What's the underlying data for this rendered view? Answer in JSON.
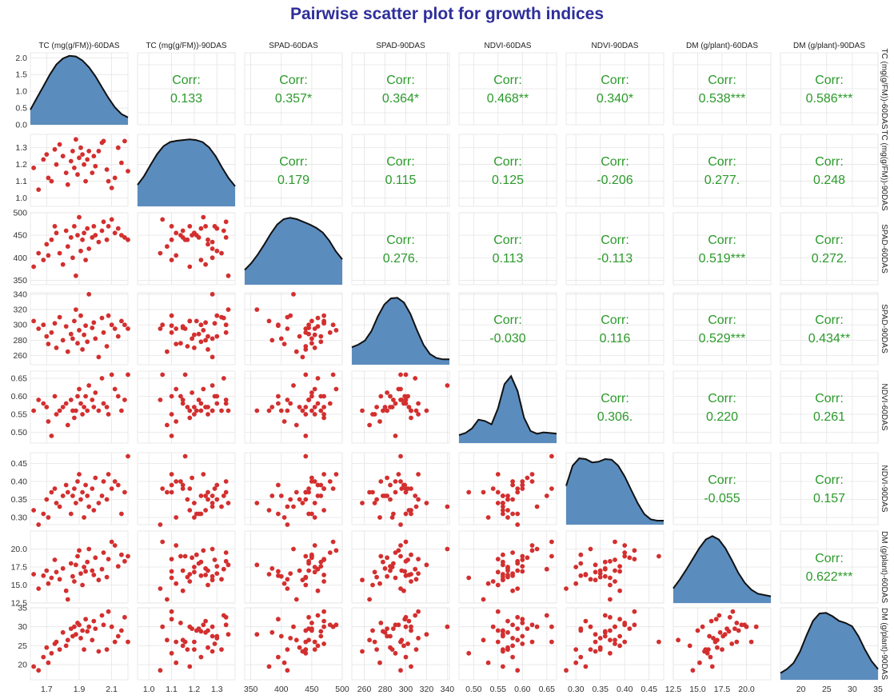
{
  "title": "Pairwise scatter plot for growth indices",
  "chart_data": {
    "type": "scatter",
    "subtype": "pairs-matrix",
    "variables": [
      {
        "name": "TC (mg(g/FM))-60DAS",
        "row_label": "TC (mg(g/FM))-60DAS",
        "range": [
          1.6,
          2.2
        ],
        "ticks": [
          1.7,
          1.9,
          2.1
        ]
      },
      {
        "name": "TC (mg(g/FM))-90DAS",
        "row_label": "TC (mg(g/FM))-90DAS",
        "range": [
          0.95,
          1.38
        ],
        "ticks": [
          1.0,
          1.1,
          1.2,
          1.3
        ],
        "y_ticks": [
          1.0,
          1.1,
          1.2,
          1.3
        ]
      },
      {
        "name": "SPAD-60DAS",
        "row_label": "SPAD-60DAS",
        "range": [
          340,
          500
        ],
        "ticks": [
          350,
          400,
          450,
          500
        ],
        "y_ticks": [
          350,
          400,
          450,
          500
        ]
      },
      {
        "name": "SPAD-90DAS",
        "row_label": "SPAD-90DAS",
        "range": [
          248,
          342
        ],
        "ticks": [
          260,
          280,
          300,
          320,
          340
        ],
        "y_ticks": [
          260,
          280,
          300,
          320,
          340
        ]
      },
      {
        "name": "NDVI-60DAS",
        "row_label": "NDVI-60DAS",
        "range": [
          0.47,
          0.67
        ],
        "ticks": [
          0.5,
          0.55,
          0.6,
          0.65
        ],
        "y_ticks": [
          0.5,
          0.55,
          0.6,
          0.65
        ]
      },
      {
        "name": "NDVI-90DAS",
        "row_label": "NDVI-90DAS",
        "range": [
          0.28,
          0.48
        ],
        "ticks": [
          0.3,
          0.35,
          0.4,
          0.45
        ],
        "y_ticks": [
          0.3,
          0.35,
          0.4,
          0.45
        ]
      },
      {
        "name": "DM (g/plant)-60DAS",
        "row_label": "DM (g/plant)-60DAS",
        "range": [
          12.5,
          22.5
        ],
        "ticks": [
          12.5,
          15.0,
          17.5,
          20.0
        ],
        "y_ticks": [
          12.5,
          15.0,
          17.5,
          20.0
        ]
      },
      {
        "name": "DM (g/plant)-90DAS",
        "row_label": "DM (g/plant)-90DAS",
        "range": [
          16,
          35
        ],
        "ticks": [
          20,
          25,
          30,
          35
        ],
        "y_ticks": [
          20,
          25,
          30,
          35
        ]
      }
    ],
    "first_row_density_ticks": [
      0.0,
      0.5,
      1.0,
      1.5,
      2.0
    ],
    "first_row_density_max": 2.15,
    "density_curves": [
      [
        0.45,
        0.8,
        1.15,
        1.5,
        1.8,
        1.98,
        2.06,
        2.04,
        1.92,
        1.72,
        1.45,
        1.12,
        0.8,
        0.52,
        0.32,
        0.22
      ],
      [
        0.32,
        0.45,
        0.62,
        0.78,
        0.9,
        0.96,
        0.98,
        0.99,
        1.0,
        0.99,
        0.96,
        0.88,
        0.75,
        0.58,
        0.42,
        0.3
      ],
      [
        0.22,
        0.32,
        0.45,
        0.6,
        0.76,
        0.9,
        0.98,
        1.0,
        0.98,
        0.94,
        0.9,
        0.85,
        0.78,
        0.66,
        0.5,
        0.38
      ],
      [
        0.26,
        0.3,
        0.36,
        0.5,
        0.72,
        0.9,
        0.99,
        1.0,
        0.93,
        0.76,
        0.52,
        0.3,
        0.16,
        0.1,
        0.08,
        0.08
      ],
      [
        0.12,
        0.15,
        0.22,
        0.35,
        0.33,
        0.28,
        0.52,
        0.88,
        1.0,
        0.78,
        0.38,
        0.18,
        0.14,
        0.16,
        0.15,
        0.14
      ],
      [
        0.58,
        0.88,
        0.99,
        0.98,
        0.93,
        0.94,
        0.98,
        0.97,
        0.88,
        0.72,
        0.52,
        0.32,
        0.16,
        0.08,
        0.06,
        0.06
      ],
      [
        0.22,
        0.35,
        0.5,
        0.66,
        0.82,
        0.95,
        1.0,
        0.95,
        0.82,
        0.64,
        0.45,
        0.3,
        0.2,
        0.14,
        0.12,
        0.1
      ],
      [
        0.1,
        0.16,
        0.25,
        0.42,
        0.66,
        0.88,
        0.99,
        1.0,
        0.95,
        0.88,
        0.85,
        0.8,
        0.65,
        0.45,
        0.28,
        0.16
      ]
    ],
    "observations": [
      [
        1.62,
        1.18,
        380,
        305,
        0.56,
        0.32,
        16.5,
        19.5
      ],
      [
        1.65,
        1.05,
        410,
        295,
        0.59,
        0.28,
        14.5,
        18.5
      ],
      [
        1.68,
        1.23,
        395,
        300,
        0.58,
        0.31,
        16.3,
        22.0
      ],
      [
        1.7,
        1.26,
        430,
        285,
        0.57,
        0.35,
        17.0,
        24.5
      ],
      [
        1.71,
        1.12,
        405,
        275,
        0.53,
        0.3,
        15.2,
        20.5
      ],
      [
        1.73,
        1.1,
        440,
        290,
        0.49,
        0.37,
        16.0,
        23.0
      ],
      [
        1.75,
        1.29,
        470,
        302,
        0.6,
        0.38,
        18.5,
        25.5
      ],
      [
        1.76,
        1.2,
        455,
        270,
        0.55,
        0.34,
        16.8,
        26.0
      ],
      [
        1.78,
        1.32,
        410,
        310,
        0.56,
        0.33,
        15.8,
        24.0
      ],
      [
        1.8,
        1.25,
        385,
        280,
        0.57,
        0.36,
        17.3,
        28.5
      ],
      [
        1.82,
        1.15,
        460,
        298,
        0.58,
        0.39,
        14.2,
        25.0
      ],
      [
        1.83,
        1.08,
        425,
        265,
        0.52,
        0.37,
        13.0,
        26.5
      ],
      [
        1.85,
        1.22,
        445,
        288,
        0.59,
        0.31,
        18.0,
        29.5
      ],
      [
        1.86,
        1.28,
        400,
        282,
        0.56,
        0.36,
        16.2,
        27.5
      ],
      [
        1.87,
        1.18,
        470,
        305,
        0.54,
        0.38,
        15.5,
        30.0
      ],
      [
        1.88,
        1.35,
        360,
        320,
        0.56,
        0.34,
        17.8,
        28.0
      ],
      [
        1.89,
        1.14,
        450,
        276,
        0.6,
        0.4,
        19.0,
        31.0
      ],
      [
        1.9,
        1.24,
        490,
        293,
        0.62,
        0.42,
        19.8,
        30.5
      ],
      [
        1.91,
        1.3,
        415,
        312,
        0.58,
        0.35,
        16.6,
        27.0
      ],
      [
        1.92,
        1.26,
        440,
        268,
        0.55,
        0.37,
        15.0,
        29.0
      ],
      [
        1.93,
        1.2,
        455,
        287,
        0.57,
        0.3,
        17.5,
        24.0
      ],
      [
        1.94,
        1.1,
        395,
        299,
        0.6,
        0.39,
        16.9,
        32.0
      ],
      [
        1.95,
        1.23,
        465,
        278,
        0.56,
        0.36,
        18.2,
        28.8
      ],
      [
        1.96,
        1.28,
        420,
        340,
        0.63,
        0.33,
        20.0,
        30.0
      ],
      [
        1.98,
        1.15,
        445,
        296,
        0.59,
        0.38,
        17.0,
        26.5
      ],
      [
        1.99,
        1.25,
        470,
        303,
        0.57,
        0.32,
        16.4,
        31.5
      ],
      [
        2.0,
        1.19,
        450,
        282,
        0.61,
        0.41,
        18.8,
        29.5
      ],
      [
        2.02,
        1.28,
        435,
        258,
        0.56,
        0.34,
        15.7,
        23.5
      ],
      [
        2.04,
        1.33,
        460,
        309,
        0.65,
        0.36,
        17.2,
        33.0
      ],
      [
        2.05,
        1.34,
        480,
        290,
        0.58,
        0.4,
        19.5,
        30.5
      ],
      [
        2.07,
        1.17,
        440,
        272,
        0.57,
        0.35,
        16.1,
        24.0
      ],
      [
        2.08,
        1.1,
        470,
        312,
        0.55,
        0.42,
        18.6,
        34.0
      ],
      [
        2.1,
        1.06,
        485,
        300,
        0.66,
        0.38,
        21.0,
        30.0
      ],
      [
        2.12,
        1.12,
        455,
        295,
        0.62,
        0.4,
        20.5,
        26.0
      ],
      [
        2.14,
        1.3,
        465,
        285,
        0.6,
        0.39,
        17.6,
        27.5
      ],
      [
        2.16,
        1.21,
        450,
        305,
        0.56,
        0.31,
        19.2,
        29.0
      ],
      [
        2.18,
        1.34,
        445,
        300,
        0.59,
        0.37,
        18.3,
        32.5
      ],
      [
        2.2,
        1.16,
        440,
        295,
        0.66,
        0.47,
        19.0,
        26.0
      ]
    ],
    "correlations": [
      {
        "row": 0,
        "col": 1,
        "label": "Corr:",
        "value": "0.133"
      },
      {
        "row": 0,
        "col": 2,
        "label": "Corr:",
        "value": "0.357*"
      },
      {
        "row": 0,
        "col": 3,
        "label": "Corr:",
        "value": "0.364*"
      },
      {
        "row": 0,
        "col": 4,
        "label": "Corr:",
        "value": "0.468**"
      },
      {
        "row": 0,
        "col": 5,
        "label": "Corr:",
        "value": "0.340*"
      },
      {
        "row": 0,
        "col": 6,
        "label": "Corr:",
        "value": "0.538***"
      },
      {
        "row": 0,
        "col": 7,
        "label": "Corr:",
        "value": "0.586***"
      },
      {
        "row": 1,
        "col": 2,
        "label": "Corr:",
        "value": "0.179"
      },
      {
        "row": 1,
        "col": 3,
        "label": "Corr:",
        "value": "0.115"
      },
      {
        "row": 1,
        "col": 4,
        "label": "Corr:",
        "value": "0.125"
      },
      {
        "row": 1,
        "col": 5,
        "label": "Corr:",
        "value": "-0.206"
      },
      {
        "row": 1,
        "col": 6,
        "label": "Corr:",
        "value": "0.277."
      },
      {
        "row": 1,
        "col": 7,
        "label": "Corr:",
        "value": "0.248"
      },
      {
        "row": 2,
        "col": 3,
        "label": "Corr:",
        "value": "0.276."
      },
      {
        "row": 2,
        "col": 4,
        "label": "Corr:",
        "value": "0.113"
      },
      {
        "row": 2,
        "col": 5,
        "label": "Corr:",
        "value": "-0.113"
      },
      {
        "row": 2,
        "col": 6,
        "label": "Corr:",
        "value": "0.519***"
      },
      {
        "row": 2,
        "col": 7,
        "label": "Corr:",
        "value": "0.272."
      },
      {
        "row": 3,
        "col": 4,
        "label": "Corr:",
        "value": "-0.030"
      },
      {
        "row": 3,
        "col": 5,
        "label": "Corr:",
        "value": "0.116"
      },
      {
        "row": 3,
        "col": 6,
        "label": "Corr:",
        "value": "0.529***"
      },
      {
        "row": 3,
        "col": 7,
        "label": "Corr:",
        "value": "0.434**"
      },
      {
        "row": 4,
        "col": 5,
        "label": "Corr:",
        "value": "0.306."
      },
      {
        "row": 4,
        "col": 6,
        "label": "Corr:",
        "value": "0.220"
      },
      {
        "row": 4,
        "col": 7,
        "label": "Corr:",
        "value": "0.261"
      },
      {
        "row": 5,
        "col": 6,
        "label": "Corr:",
        "value": "-0.055"
      },
      {
        "row": 5,
        "col": 7,
        "label": "Corr:",
        "value": "0.157"
      },
      {
        "row": 6,
        "col": 7,
        "label": "Corr:",
        "value": "0.622***"
      }
    ],
    "grid": true,
    "colors": {
      "points": "#d32f2f",
      "density_fill": "#5b8cbe",
      "density_line": "#111111",
      "corr_text": "#2b9a2b",
      "title": "#2e2e9a"
    }
  }
}
